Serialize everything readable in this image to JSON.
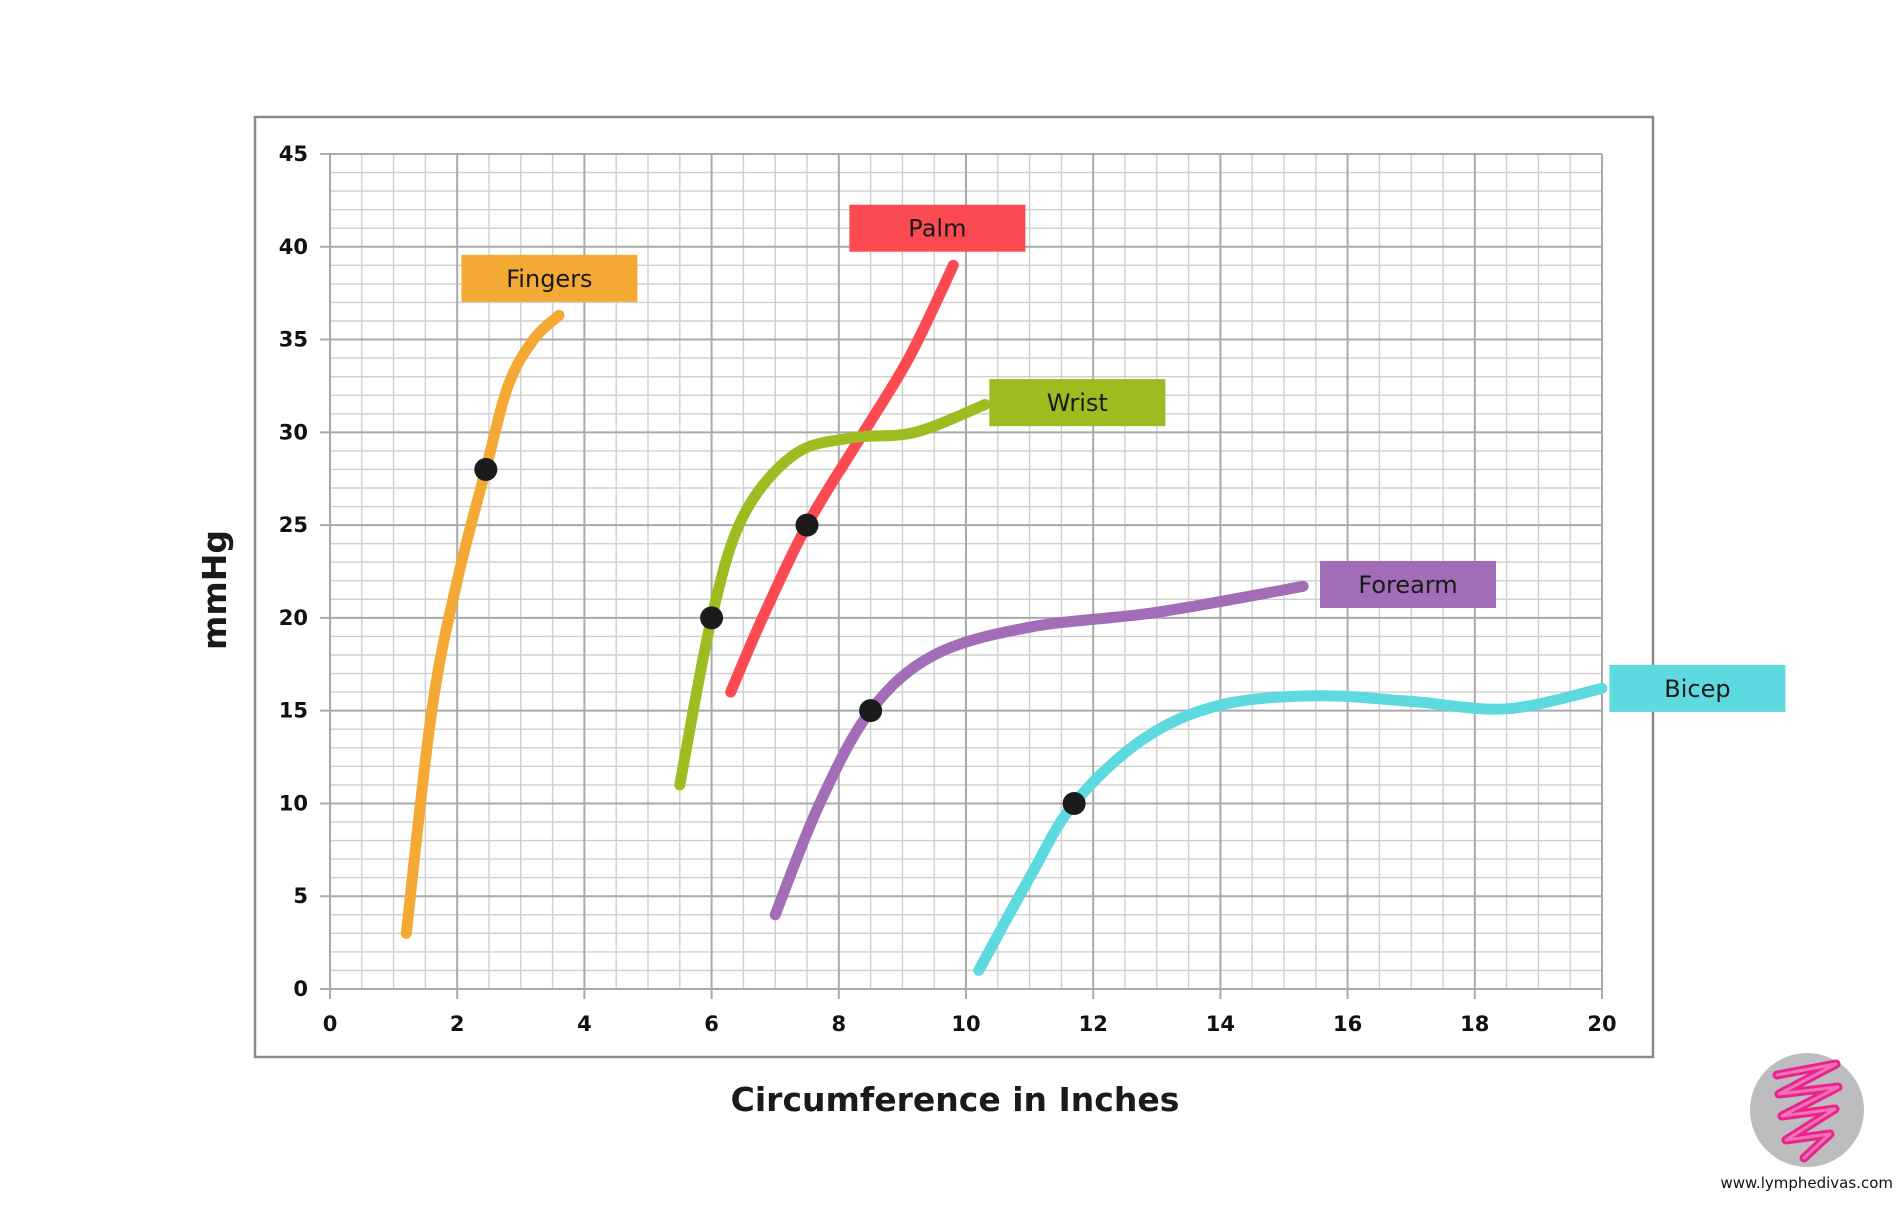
{
  "chart_data": {
    "type": "line",
    "xlabel": "Circumference in Inches",
    "ylabel": "mmHg",
    "xlim": [
      0,
      20
    ],
    "ylim": [
      0,
      45
    ],
    "xticks": [
      0,
      2,
      4,
      6,
      8,
      10,
      12,
      14,
      16,
      18,
      20
    ],
    "yticks": [
      0,
      5,
      10,
      15,
      20,
      25,
      30,
      35,
      40,
      45
    ],
    "x_tick_labels": [
      "0",
      "2",
      "4",
      "6",
      "8",
      "10",
      "12",
      "14",
      "16",
      "18",
      "20"
    ],
    "y_tick_labels": [
      "0",
      "5",
      "10",
      "15",
      "20",
      "25",
      "30",
      "35",
      "40",
      "45"
    ],
    "grid": true,
    "grid_minor_x": 0.5,
    "grid_minor_y": 1,
    "series": [
      {
        "name": "Fingers",
        "color": "#F4A935",
        "points": [
          [
            1.2,
            3
          ],
          [
            1.6,
            15
          ],
          [
            2.0,
            22
          ],
          [
            2.45,
            28
          ],
          [
            2.8,
            32.5
          ],
          [
            3.2,
            35
          ],
          [
            3.6,
            36.3
          ]
        ],
        "marker": [
          2.45,
          28
        ],
        "label_at": [
          3.45,
          38.3
        ]
      },
      {
        "name": "Palm",
        "color": "#FC4A53",
        "points": [
          [
            6.3,
            16
          ],
          [
            6.8,
            20
          ],
          [
            7.5,
            25
          ],
          [
            8.3,
            29.5
          ],
          [
            9.1,
            34
          ],
          [
            9.8,
            39
          ]
        ],
        "marker": [
          7.5,
          25
        ],
        "label_at": [
          9.55,
          41
        ]
      },
      {
        "name": "Wrist",
        "color": "#9DBC1F",
        "points": [
          [
            5.5,
            11
          ],
          [
            6.0,
            20
          ],
          [
            6.5,
            25.5
          ],
          [
            7.3,
            28.8
          ],
          [
            8.2,
            29.7
          ],
          [
            9.2,
            30
          ],
          [
            10.3,
            31.5
          ]
        ],
        "marker": [
          6.0,
          20
        ],
        "label_at": [
          11.75,
          31.6
        ]
      },
      {
        "name": "Forearm",
        "color": "#A26DB6",
        "points": [
          [
            7.0,
            4
          ],
          [
            7.7,
            10
          ],
          [
            8.5,
            15
          ],
          [
            9.5,
            18
          ],
          [
            11.0,
            19.5
          ],
          [
            13.0,
            20.3
          ],
          [
            15.3,
            21.7
          ]
        ],
        "marker": [
          8.5,
          15
        ],
        "label_at": [
          16.95,
          21.8
        ]
      },
      {
        "name": "Bicep",
        "color": "#5DD9E0",
        "points": [
          [
            10.2,
            1
          ],
          [
            11.0,
            6
          ],
          [
            11.7,
            10
          ],
          [
            12.8,
            13.5
          ],
          [
            14.0,
            15.3
          ],
          [
            15.5,
            15.8
          ],
          [
            17.0,
            15.5
          ],
          [
            18.5,
            15.1
          ],
          [
            20.0,
            16.2
          ]
        ],
        "marker": [
          11.7,
          10
        ],
        "label_at": [
          21.5,
          16.2
        ]
      }
    ]
  },
  "footer": {
    "website": "www.lymphedivas.com",
    "logo_icon": "lymphedivas-spiral-logo-icon",
    "logo_color": "#E9258D",
    "logo_bg": "#BDBCBE"
  }
}
